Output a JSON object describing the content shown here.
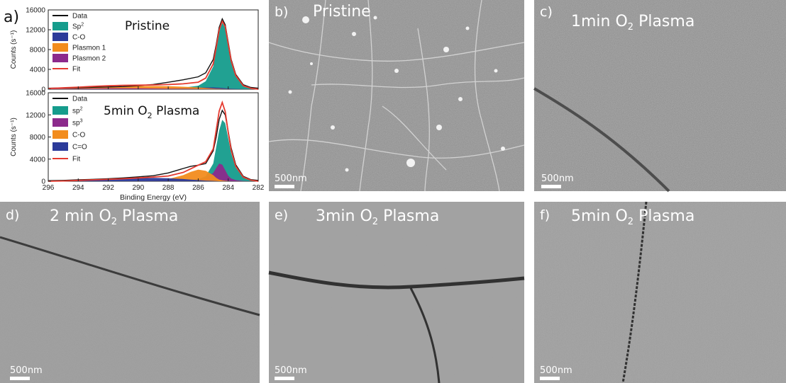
{
  "figure": {
    "panel_a": {
      "label": "a)",
      "top_title": "Pristine",
      "bottom_title_pre": "5min O",
      "bottom_title_sub": "2",
      "bottom_title_post": " Plasma"
    },
    "panels": {
      "b": {
        "label": "b)",
        "title_pre": "Pristine",
        "title_sub": "",
        "title_post": "",
        "scale": "500nm"
      },
      "c": {
        "label": "c)",
        "title_pre": "1min O",
        "title_sub": "2",
        "title_post": " Plasma",
        "scale": "500nm"
      },
      "d": {
        "label": "d)",
        "title_pre": "2 min O",
        "title_sub": "2",
        "title_post": " Plasma",
        "scale": "500nm"
      },
      "e": {
        "label": "e)",
        "title_pre": "3min O",
        "title_sub": "2",
        "title_post": " Plasma",
        "scale": "500nm"
      },
      "f": {
        "label": "f)",
        "title_pre": "5min O",
        "title_sub": "2",
        "title_post": " Plasma",
        "scale": "500nm"
      }
    }
  },
  "chart_data": [
    {
      "type": "area",
      "title": "Pristine",
      "xlabel": "",
      "ylabel": "Counts (s⁻¹)",
      "xlim": [
        296,
        282
      ],
      "ylim": [
        0,
        16000
      ],
      "x_ticks": [
        296,
        294,
        292,
        290,
        288,
        286,
        284,
        282
      ],
      "y_ticks": [
        0,
        4000,
        8000,
        12000,
        16000
      ],
      "legend": {
        "placement": "top-left",
        "entries": [
          {
            "label": "Data",
            "sup": "",
            "color": "#111111",
            "kind": "line"
          },
          {
            "label": "Sp",
            "sup": "2",
            "color": "#159c8c",
            "kind": "box"
          },
          {
            "label": "C-O",
            "sup": "",
            "color": "#2b3a9a",
            "kind": "box"
          },
          {
            "label": "Plasmon 1",
            "sup": "",
            "color": "#f28c1d",
            "kind": "box"
          },
          {
            "label": "Plasmon 2",
            "sup": "",
            "color": "#8c2a8c",
            "kind": "box"
          },
          {
            "label": "Fit",
            "sup": "",
            "color": "#e53a2f",
            "kind": "line"
          }
        ]
      },
      "x": [
        296,
        295,
        294,
        293,
        292,
        291,
        290,
        289,
        288,
        287,
        286,
        285.5,
        285,
        284.8,
        284.6,
        284.4,
        284.2,
        284,
        283.8,
        283.5,
        283,
        282.5,
        282
      ],
      "series": [
        {
          "name": "Data",
          "values": [
            200,
            250,
            300,
            380,
            450,
            550,
            700,
            950,
            1400,
            1900,
            2500,
            3300,
            6000,
            9000,
            12500,
            14200,
            13000,
            9500,
            6000,
            3000,
            900,
            350,
            200
          ]
        },
        {
          "name": "Sp2",
          "values": [
            0,
            0,
            0,
            0,
            0,
            0,
            0,
            0,
            100,
            300,
            700,
            1600,
            4600,
            8000,
            11600,
            13400,
            12400,
            9000,
            5600,
            2700,
            700,
            200,
            0
          ]
        },
        {
          "name": "C-O",
          "values": [
            0,
            0,
            0,
            0,
            0,
            0,
            0,
            50,
            120,
            200,
            300,
            350,
            350,
            330,
            300,
            250,
            200,
            150,
            100,
            60,
            20,
            0,
            0
          ]
        },
        {
          "name": "Plasmon 1",
          "values": [
            100,
            200,
            300,
            420,
            520,
            600,
            650,
            650,
            600,
            500,
            350,
            250,
            150,
            100,
            80,
            60,
            40,
            20,
            10,
            0,
            0,
            0,
            0
          ]
        },
        {
          "name": "Plasmon 2",
          "values": [
            50,
            80,
            120,
            150,
            170,
            180,
            170,
            150,
            120,
            90,
            60,
            40,
            20,
            10,
            0,
            0,
            0,
            0,
            0,
            0,
            0,
            0,
            0
          ]
        },
        {
          "name": "Fit",
          "values": [
            150,
            280,
            420,
            570,
            690,
            780,
            820,
            850,
            940,
            1090,
            1410,
            2240,
            5120,
            8440,
            11980,
            13710,
            12640,
            9170,
            5710,
            2760,
            720,
            200,
            0
          ]
        }
      ]
    },
    {
      "type": "area",
      "title": "5min O2 Plasma",
      "xlabel": "Binding Energy (eV)",
      "ylabel": "Counts (s⁻¹)",
      "xlim": [
        296,
        282
      ],
      "ylim": [
        0,
        16000
      ],
      "x_ticks": [
        296,
        294,
        292,
        290,
        288,
        286,
        284,
        282
      ],
      "y_ticks": [
        0,
        4000,
        8000,
        12000,
        16000
      ],
      "legend": {
        "placement": "top-left",
        "entries": [
          {
            "label": "Data",
            "sup": "",
            "color": "#111111",
            "kind": "line"
          },
          {
            "label": "sp",
            "sup": "2",
            "color": "#159c8c",
            "kind": "box"
          },
          {
            "label": "sp",
            "sup": "3",
            "color": "#8c2a8c",
            "kind": "box"
          },
          {
            "label": "C-O",
            "sup": "",
            "color": "#f28c1d",
            "kind": "box"
          },
          {
            "label": "C=O",
            "sup": "",
            "color": "#2b3a9a",
            "kind": "box"
          },
          {
            "label": "Fit",
            "sup": "",
            "color": "#e53a2f",
            "kind": "line"
          }
        ]
      },
      "x": [
        296,
        295,
        294,
        293,
        292,
        291,
        290,
        289,
        288,
        287,
        286.5,
        286,
        285.5,
        285,
        284.8,
        284.6,
        284.4,
        284.2,
        284,
        283.8,
        283.5,
        283,
        282.5,
        282
      ],
      "series": [
        {
          "name": "Data",
          "values": [
            100,
            150,
            250,
            350,
            450,
            600,
            800,
            1000,
            1500,
            2300,
            2700,
            2900,
            3200,
            5500,
            8000,
            11200,
            12800,
            12000,
            9000,
            6000,
            3000,
            900,
            300,
            150
          ]
        },
        {
          "name": "sp2",
          "values": [
            0,
            0,
            0,
            0,
            0,
            0,
            0,
            0,
            0,
            100,
            200,
            400,
            900,
            3200,
            6200,
            9200,
            11100,
            10500,
            7800,
            5100,
            2500,
            700,
            200,
            0
          ]
        },
        {
          "name": "sp3",
          "values": [
            0,
            0,
            0,
            0,
            0,
            0,
            0,
            0,
            0,
            0,
            50,
            200,
            600,
            1500,
            2400,
            3200,
            3000,
            2000,
            1000,
            500,
            200,
            50,
            0,
            0
          ]
        },
        {
          "name": "C-O",
          "values": [
            0,
            0,
            0,
            0,
            0,
            0,
            50,
            150,
            400,
            1100,
            1700,
            2100,
            1900,
            1100,
            600,
            300,
            150,
            80,
            40,
            0,
            0,
            0,
            0,
            0
          ]
        },
        {
          "name": "C=O",
          "values": [
            0,
            50,
            150,
            250,
            350,
            450,
            550,
            600,
            550,
            400,
            300,
            200,
            120,
            60,
            30,
            0,
            0,
            0,
            0,
            0,
            0,
            0,
            0,
            0
          ]
        },
        {
          "name": "Fit",
          "values": [
            0,
            50,
            150,
            250,
            350,
            450,
            600,
            750,
            950,
            1600,
            2250,
            2900,
            3520,
            5860,
            9230,
            12700,
            14250,
            12580,
            8840,
            5600,
            2700,
            750,
            200,
            0
          ]
        }
      ]
    }
  ]
}
